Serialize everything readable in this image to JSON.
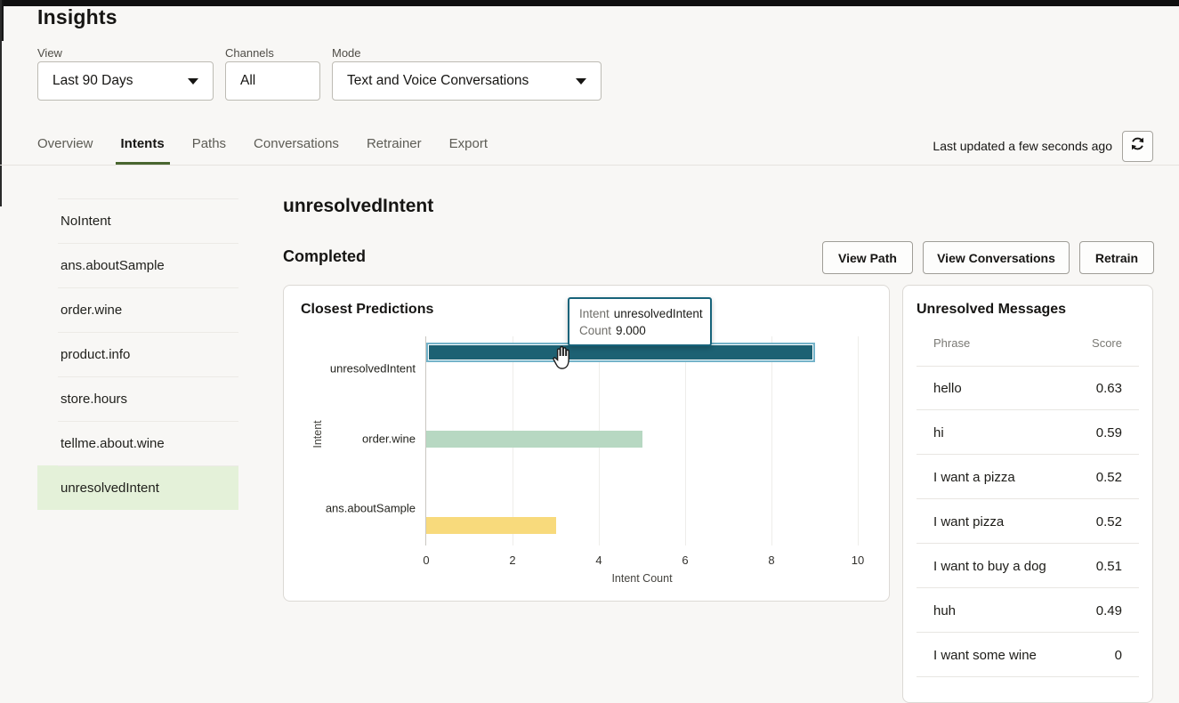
{
  "page": {
    "title": "Insights"
  },
  "filters": {
    "view": {
      "label": "View",
      "value": "Last 90 Days"
    },
    "channels": {
      "label": "Channels",
      "value": "All"
    },
    "mode": {
      "label": "Mode",
      "value": "Text and Voice Conversations"
    }
  },
  "tabs": {
    "items": [
      {
        "label": "Overview",
        "active": false
      },
      {
        "label": "Intents",
        "active": true
      },
      {
        "label": "Paths",
        "active": false
      },
      {
        "label": "Conversations",
        "active": false
      },
      {
        "label": "Retrainer",
        "active": false
      },
      {
        "label": "Export",
        "active": false
      }
    ],
    "last_updated": "Last updated a few seconds ago",
    "refresh_icon": "refresh-icon"
  },
  "sidebar": {
    "items": [
      {
        "label": "NoIntent",
        "selected": false
      },
      {
        "label": "ans.aboutSample",
        "selected": false
      },
      {
        "label": "order.wine",
        "selected": false
      },
      {
        "label": "product.info",
        "selected": false
      },
      {
        "label": "store.hours",
        "selected": false
      },
      {
        "label": "tellme.about.wine",
        "selected": false
      },
      {
        "label": "unresolvedIntent",
        "selected": true
      }
    ]
  },
  "main": {
    "title": "unresolvedIntent",
    "status": "Completed",
    "actions": {
      "view_path": "View Path",
      "view_conversations": "View Conversations",
      "retrain": "Retrain"
    }
  },
  "chart_data": {
    "type": "bar",
    "orientation": "horizontal",
    "title": "Closest Predictions",
    "categories": [
      "unresolvedIntent",
      "order.wine",
      "ans.aboutSample"
    ],
    "values": [
      9,
      5,
      3
    ],
    "bar_colors": [
      "#1d6173",
      "#b7d8c2",
      "#f8da7c"
    ],
    "highlighted_category": "unresolvedIntent",
    "highlight_ring_color": "#74b3c9",
    "xlabel": "Intent Count",
    "ylabel": "Intent",
    "xlim": [
      0,
      10
    ],
    "xticks": [
      0,
      2,
      4,
      6,
      8,
      10
    ],
    "grid": "vertical",
    "tooltip": {
      "intent_label": "Intent",
      "intent_value": "unresolvedIntent",
      "count_label": "Count",
      "count_value": "9.000"
    }
  },
  "messages": {
    "title": "Unresolved Messages",
    "columns": [
      "Phrase",
      "Score"
    ],
    "rows": [
      {
        "phrase": "hello",
        "score": "0.63"
      },
      {
        "phrase": "hi",
        "score": "0.59"
      },
      {
        "phrase": "I want a pizza",
        "score": "0.52"
      },
      {
        "phrase": "I want pizza",
        "score": "0.52"
      },
      {
        "phrase": "I want to buy a dog",
        "score": "0.51"
      },
      {
        "phrase": "huh",
        "score": "0.49"
      },
      {
        "phrase": "I want some wine",
        "score": "0"
      }
    ]
  },
  "colors": {
    "page_background": "#f8f7f5",
    "selected_intent_background": "#e4f1d9",
    "active_tab_underline": "#49662f",
    "tooltip_border": "#17637a"
  }
}
